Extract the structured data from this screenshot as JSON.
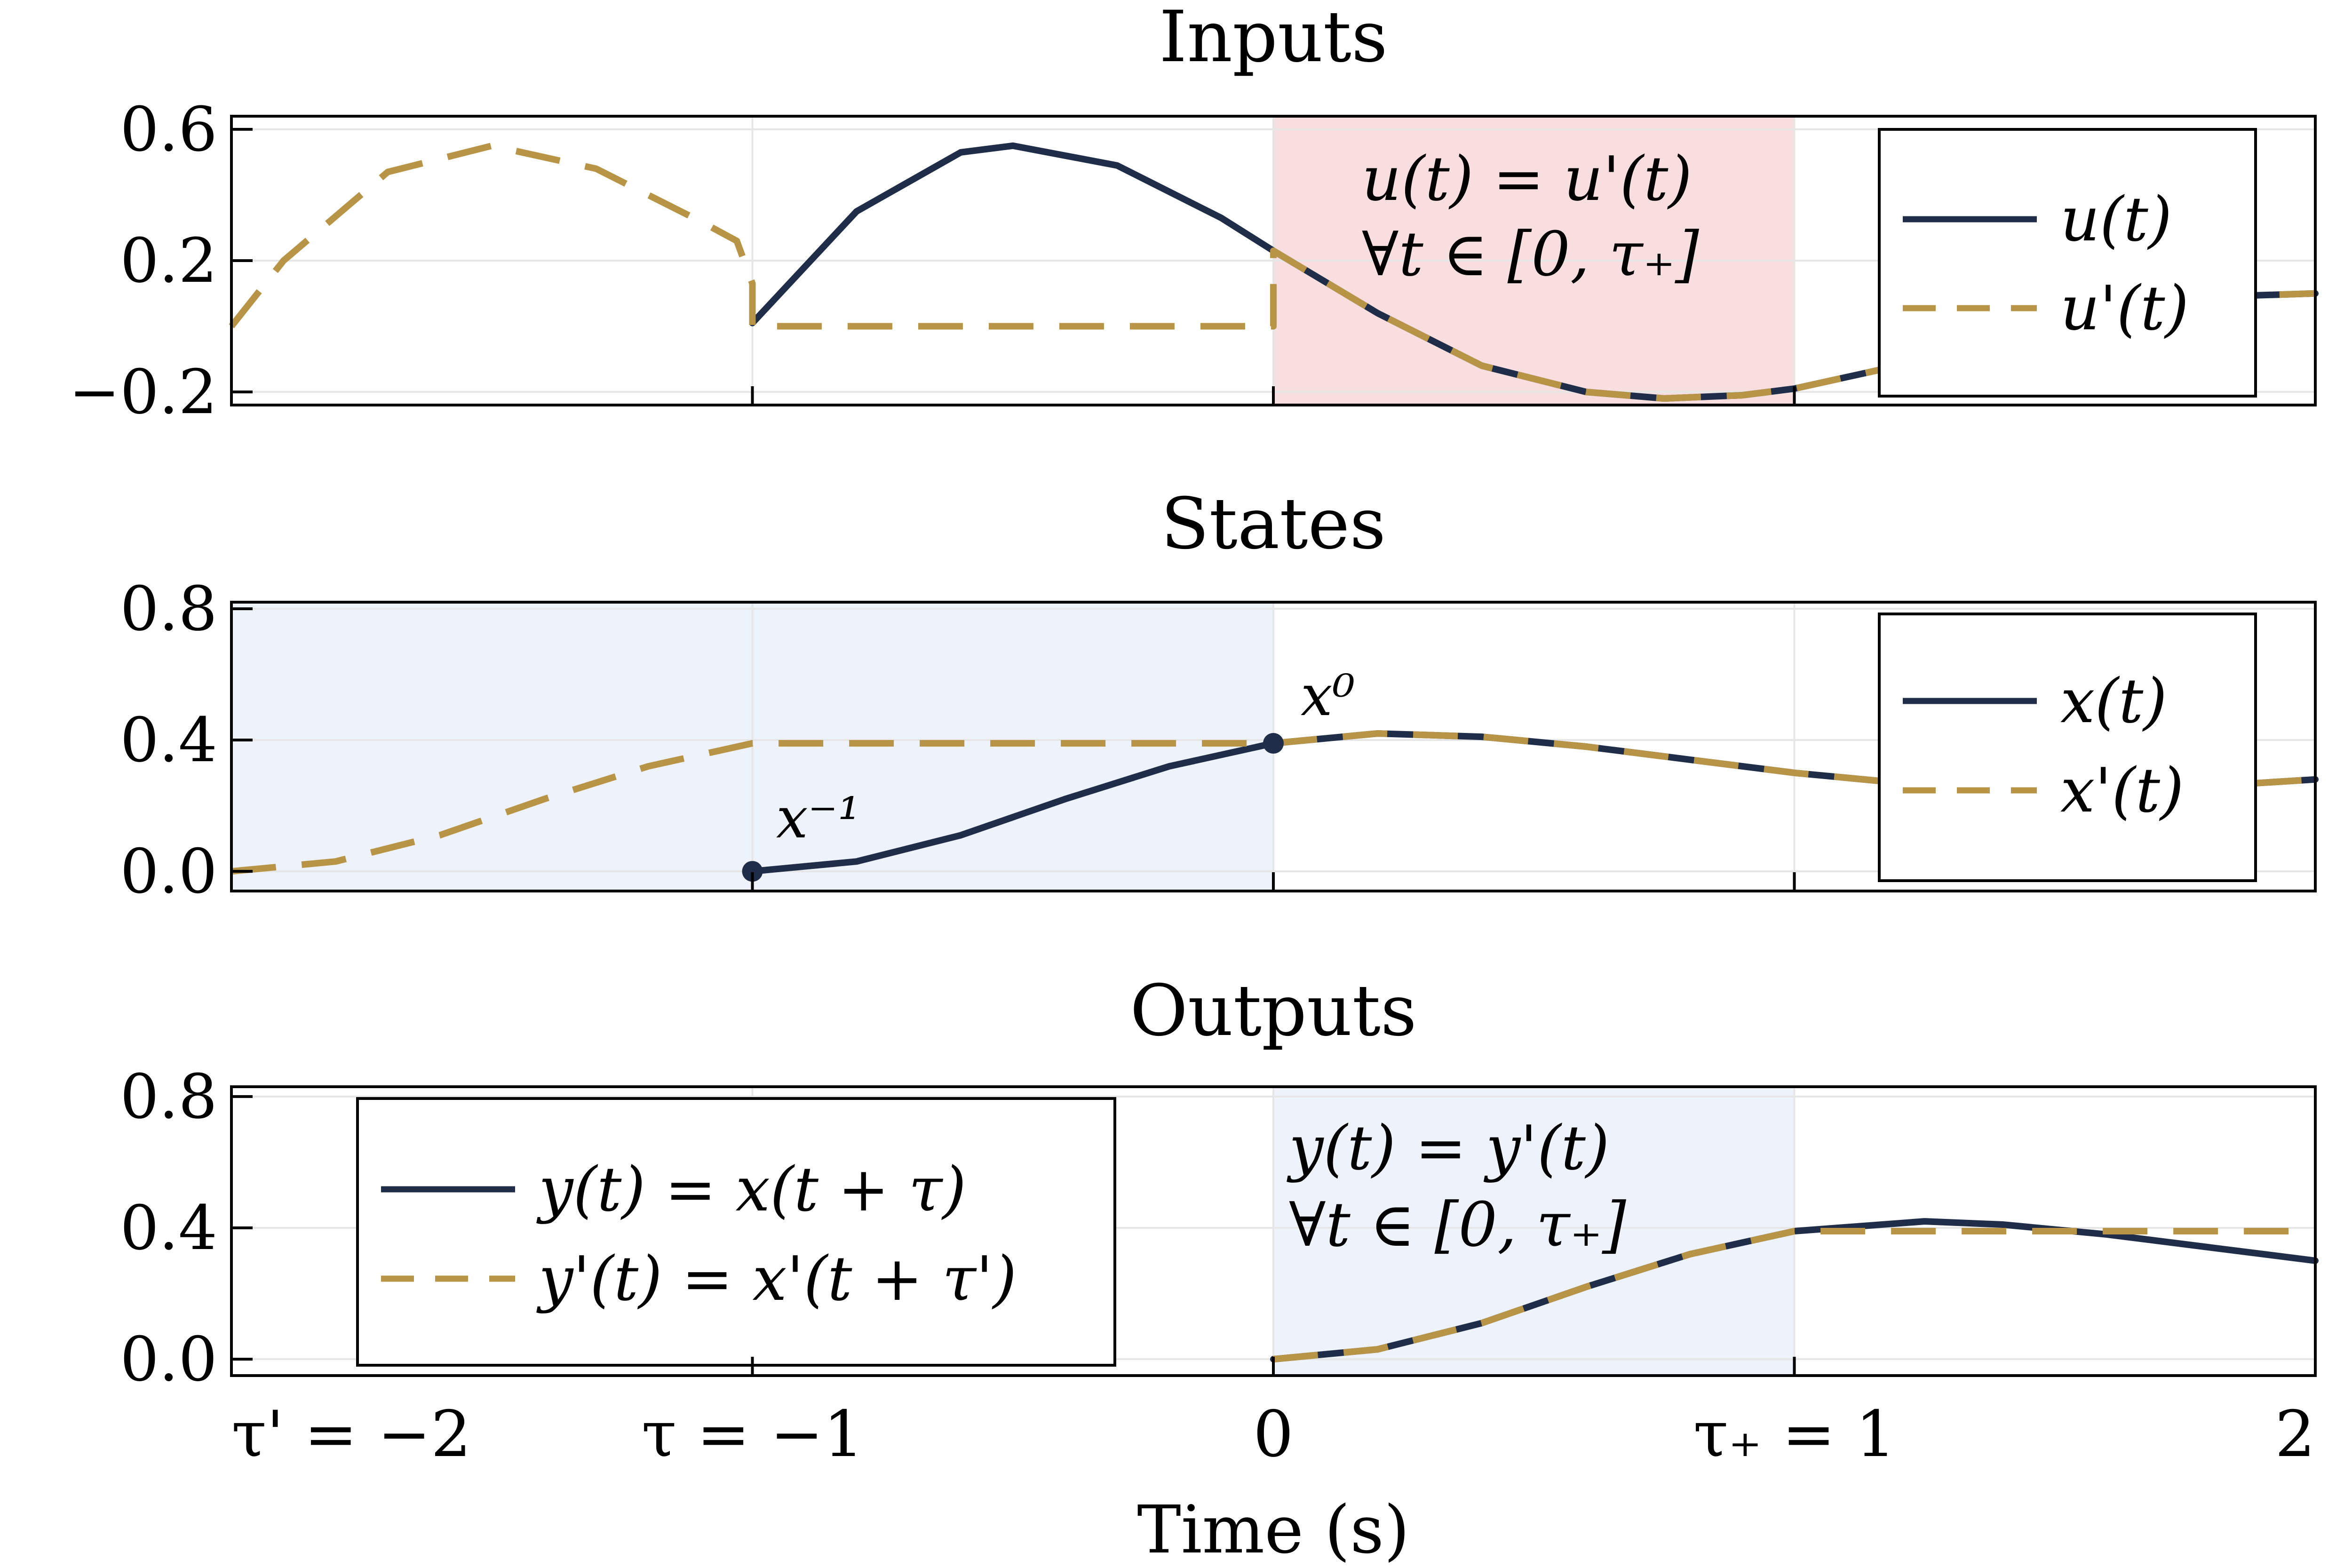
{
  "colors": {
    "solid": "#1f2d48",
    "dashed": "#b89447",
    "red_shade": "#f8dede",
    "blue_shade": "#eef2fb"
  },
  "x_axis": {
    "label": "Time (s)",
    "range": [
      -2,
      2
    ],
    "ticks": [
      {
        "value": -2,
        "label": "τ' = −2"
      },
      {
        "value": -1,
        "label": "τ = −1"
      },
      {
        "value": 0,
        "label": "0"
      },
      {
        "value": 1,
        "label": "τ₊ = 1"
      },
      {
        "value": 2,
        "label": "2"
      }
    ]
  },
  "chart_data": [
    {
      "type": "line",
      "title": "Inputs",
      "xlim": [
        -2,
        2
      ],
      "ylim": [
        -0.24,
        0.64
      ],
      "yticks": [
        {
          "value": 0.6,
          "label": "0.6"
        },
        {
          "value": 0.2,
          "label": "0.2"
        },
        {
          "value": -0.2,
          "label": "−0.2"
        }
      ],
      "grid": true,
      "legend": "top-right",
      "shaded": [
        {
          "from": 0,
          "to": 1,
          "color": "red"
        }
      ],
      "annotation": [
        "u(t) = u'(t)",
        "∀t ∈ [0, τ₊]"
      ],
      "series": [
        {
          "name": "u(t)",
          "style": "solid",
          "x": [
            -1,
            -0.8,
            -0.6,
            -0.5,
            -0.3,
            -0.1,
            0,
            0.2,
            0.4,
            0.6,
            0.75,
            0.9,
            1,
            1.2,
            1.4,
            1.6,
            1.8,
            2
          ],
          "y": [
            0.01,
            0.35,
            0.53,
            0.55,
            0.49,
            0.33,
            0.23,
            0.04,
            -0.12,
            -0.2,
            -0.22,
            -0.21,
            -0.19,
            -0.12,
            -0.02,
            0.06,
            0.09,
            0.1
          ]
        },
        {
          "name": "u'(t)",
          "style": "dashed",
          "x": [
            -2,
            -1.9,
            -1.7,
            -1.5,
            -1.3,
            -1.1,
            -1.03,
            -1,
            -1,
            0,
            0,
            0.2,
            0.4,
            0.6,
            0.75,
            0.9,
            1,
            1.2,
            1.4,
            1.6,
            1.8,
            2
          ],
          "y": [
            0.0,
            0.2,
            0.47,
            0.55,
            0.48,
            0.32,
            0.26,
            0.13,
            0.0,
            0.0,
            0.23,
            0.04,
            -0.12,
            -0.2,
            -0.22,
            -0.21,
            -0.19,
            -0.12,
            -0.02,
            0.06,
            0.09,
            0.1
          ]
        }
      ]
    },
    {
      "type": "line",
      "title": "States",
      "xlim": [
        -2,
        2
      ],
      "ylim": [
        -0.06,
        0.82
      ],
      "yticks": [
        {
          "value": 0.8,
          "label": "0.8"
        },
        {
          "value": 0.4,
          "label": "0.4"
        },
        {
          "value": 0.0,
          "label": "0.0"
        }
      ],
      "grid": true,
      "legend": "top-right",
      "shaded": [
        {
          "from": -2,
          "to": 0,
          "color": "blue"
        }
      ],
      "points": [
        {
          "x": -1,
          "y": 0.0,
          "label": "x⁻¹"
        },
        {
          "x": 0,
          "y": 0.39,
          "label": "x⁰"
        }
      ],
      "series": [
        {
          "name": "x(t)",
          "style": "solid",
          "x": [
            -1,
            -0.8,
            -0.6,
            -0.4,
            -0.2,
            0,
            0.2,
            0.4,
            0.6,
            0.8,
            1,
            1.2,
            1.4,
            1.6,
            1.8,
            2
          ],
          "y": [
            0.0,
            0.03,
            0.11,
            0.22,
            0.32,
            0.39,
            0.42,
            0.41,
            0.38,
            0.34,
            0.3,
            0.27,
            0.25,
            0.25,
            0.26,
            0.28
          ]
        },
        {
          "name": "x'(t)",
          "style": "dashed",
          "x": [
            -2,
            -1.8,
            -1.6,
            -1.4,
            -1.2,
            -1,
            0,
            0.2,
            0.4,
            0.6,
            0.8,
            1,
            1.2,
            1.4,
            1.6,
            1.8,
            2
          ],
          "y": [
            0.0,
            0.03,
            0.11,
            0.22,
            0.32,
            0.39,
            0.39,
            0.42,
            0.41,
            0.38,
            0.34,
            0.3,
            0.27,
            0.25,
            0.25,
            0.26,
            0.28
          ]
        }
      ]
    },
    {
      "type": "line",
      "title": "Outputs",
      "xlim": [
        -2,
        2
      ],
      "ylim": [
        -0.05,
        0.83
      ],
      "yticks": [
        {
          "value": 0.8,
          "label": "0.8"
        },
        {
          "value": 0.4,
          "label": "0.4"
        },
        {
          "value": 0.0,
          "label": "0.0"
        }
      ],
      "grid": true,
      "legend": "top-left",
      "shaded": [
        {
          "from": 0,
          "to": 1,
          "color": "blue"
        }
      ],
      "annotation": [
        "y(t) = y'(t)",
        "∀t ∈ [0, τ₊]"
      ],
      "series": [
        {
          "name": "y(t) = x(t + τ)",
          "style": "solid",
          "x": [
            0,
            0.2,
            0.4,
            0.6,
            0.8,
            1,
            1.25,
            1.4,
            1.6,
            1.8,
            2
          ],
          "y": [
            0.0,
            0.03,
            0.11,
            0.22,
            0.32,
            0.39,
            0.42,
            0.41,
            0.38,
            0.34,
            0.3
          ]
        },
        {
          "name": "y'(t) = x'(t + τ')",
          "style": "dashed",
          "x": [
            0,
            0.2,
            0.4,
            0.6,
            0.8,
            1,
            2
          ],
          "y": [
            0.0,
            0.03,
            0.11,
            0.22,
            0.32,
            0.39,
            0.39
          ]
        }
      ]
    }
  ]
}
